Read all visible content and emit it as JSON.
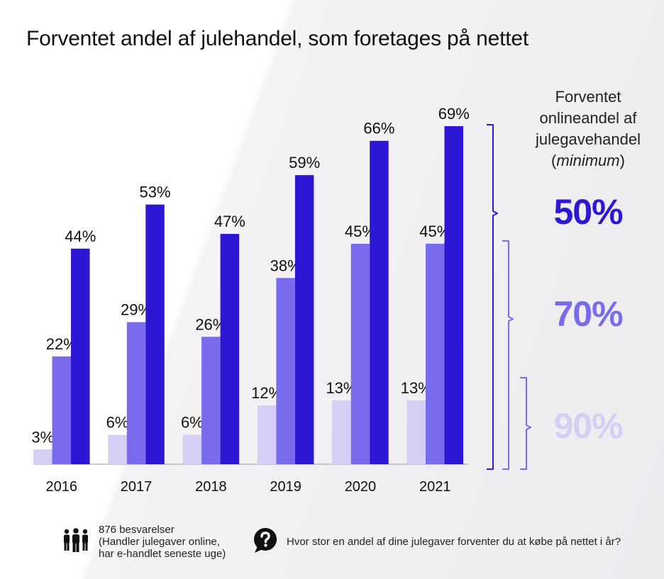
{
  "title": "Forventet andel af julehandel, som foretages på nettet",
  "chart_data": {
    "type": "bar",
    "categories": [
      "2016",
      "2017",
      "2018",
      "2019",
      "2020",
      "2021"
    ],
    "series": [
      {
        "name": "90%",
        "values": [
          3,
          6,
          6,
          12,
          13,
          13
        ],
        "labels": [
          "3%",
          "6%",
          "6%",
          "12%",
          "13%",
          "13%"
        ],
        "color": "#d3cff5"
      },
      {
        "name": "70%",
        "values": [
          22,
          29,
          26,
          38,
          45,
          45
        ],
        "labels": [
          "22%",
          "29%",
          "26%",
          "38%",
          "45%",
          "45%"
        ],
        "color": "#7a6bec"
      },
      {
        "name": "50%",
        "values": [
          44,
          53,
          47,
          59,
          66,
          69
        ],
        "labels": [
          "44%",
          "53%",
          "47%",
          "59%",
          "66%",
          "69%"
        ],
        "color": "#2d16d4"
      }
    ],
    "ylim": [
      0,
      69
    ],
    "grid": false,
    "legend_position": "right"
  },
  "legend": {
    "title_lines": [
      "Forventet",
      "onlineandel af",
      "julegavehandel"
    ],
    "title_note": "minimum",
    "levels": [
      {
        "label": "50%",
        "color": "#2d16d4"
      },
      {
        "label": "70%",
        "color": "#7a6bec"
      },
      {
        "label": "90%",
        "color": "#d3cff5"
      }
    ]
  },
  "footer": {
    "respondents_icon": "people-icon",
    "respondents_lines": [
      "876 besvarelser",
      "(Handler julegaver online,",
      "har e-handlet seneste uge)"
    ],
    "question_icon": "question-bubble-icon",
    "question": "Hvor stor en andel af dine julegaver forventer du at købe på nettet i år?"
  }
}
